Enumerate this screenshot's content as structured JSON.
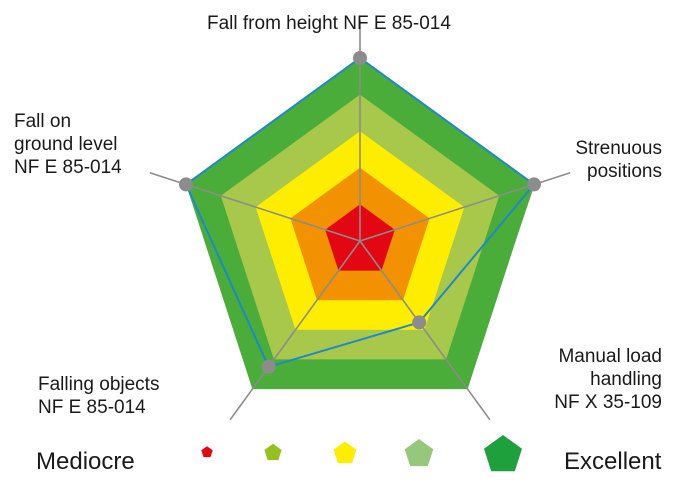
{
  "chart_data": {
    "type": "radar",
    "axes": [
      "Fall from height NF E 85-014",
      "Strenuous\npositions",
      "Manual load\nhandling\nNF X 35-109",
      "Falling objects\nNF E 85-014",
      "Fall on\nground level\nNF E 85-014"
    ],
    "scale": {
      "min": 0,
      "max": 1
    },
    "bands": [
      {
        "upto": 0.2,
        "color": "#e30613"
      },
      {
        "upto": 0.4,
        "color": "#f39200"
      },
      {
        "upto": 0.6,
        "color": "#ffed00"
      },
      {
        "upto": 0.8,
        "color": "#a8c84b"
      },
      {
        "upto": 1.0,
        "color": "#4aad3a"
      }
    ],
    "series": [
      {
        "values": [
          1.0,
          1.0,
          0.55,
          0.85,
          1.0
        ],
        "line_color": "#1e88c8",
        "point_color": "#8c8c8c"
      },
      {
        "values": [
          1.0,
          1.0,
          0.98,
          0.85,
          1.0
        ],
        "fill_color": "#a8cf7e"
      }
    ],
    "legend": {
      "low_label": "Mediocre",
      "high_label": "Excellent",
      "colors": [
        "#e30613",
        "#95c11f",
        "#ffed00",
        "#95c87a",
        "#1ea03c"
      ]
    }
  }
}
